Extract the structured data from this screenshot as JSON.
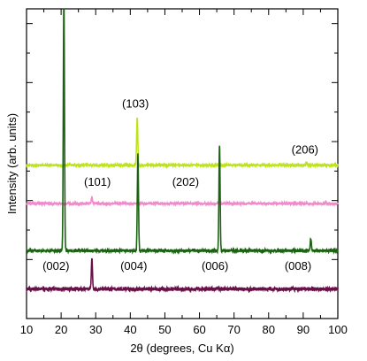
{
  "chart_data": {
    "type": "line",
    "xlabel": "2θ (degrees, Cu Kα)",
    "ylabel": "Intensity (arb. units)",
    "xlim": [
      10,
      100
    ],
    "ylim": [
      0,
      10.5
    ],
    "x_ticks": [
      10,
      20,
      30,
      40,
      50,
      60,
      70,
      80,
      90,
      100
    ],
    "x_tick_labels": [
      "10",
      "20",
      "30",
      "40",
      "50",
      "60",
      "70",
      "80",
      "90",
      "100"
    ],
    "y_tick_labels_shown": false,
    "grid": false,
    "legend": "none",
    "series": [
      {
        "color": "#bde31b",
        "baseline": 5.2,
        "noise": 0.035,
        "peaks": [
          {
            "x": 42.0,
            "height": 1.6
          },
          {
            "x": 91.0,
            "height": 0.12
          }
        ]
      },
      {
        "color": "#f08bcb",
        "baseline": 3.9,
        "noise": 0.035,
        "peaks": [
          {
            "x": 28.9,
            "height": 0.22
          },
          {
            "x": 96.5,
            "height": 0.08
          }
        ]
      },
      {
        "color": "#1b6313",
        "baseline": 2.3,
        "noise": 0.05,
        "peaks": [
          {
            "x": 20.8,
            "height": 8.5
          },
          {
            "x": 42.2,
            "height": 3.3
          },
          {
            "x": 65.8,
            "height": 3.6
          },
          {
            "x": 92.2,
            "height": 0.4
          }
        ]
      },
      {
        "color": "#6a0f47",
        "baseline": 1.0,
        "noise": 0.06,
        "peaks": [
          {
            "x": 28.9,
            "height": 1.0
          }
        ]
      }
    ],
    "annotations": [
      {
        "text": "(103)",
        "x": 41.5,
        "y": 7.15
      },
      {
        "text": "(206)",
        "x": 90.5,
        "y": 5.6
      },
      {
        "text": "(101)",
        "x": 30.5,
        "y": 4.5
      },
      {
        "text": "(202)",
        "x": 56.0,
        "y": 4.5
      },
      {
        "text": "(002)",
        "x": 18.5,
        "y": 1.65
      },
      {
        "text": "(004)",
        "x": 41.0,
        "y": 1.65
      },
      {
        "text": "(006)",
        "x": 64.5,
        "y": 1.65
      },
      {
        "text": "(008)",
        "x": 88.5,
        "y": 1.65
      }
    ]
  }
}
